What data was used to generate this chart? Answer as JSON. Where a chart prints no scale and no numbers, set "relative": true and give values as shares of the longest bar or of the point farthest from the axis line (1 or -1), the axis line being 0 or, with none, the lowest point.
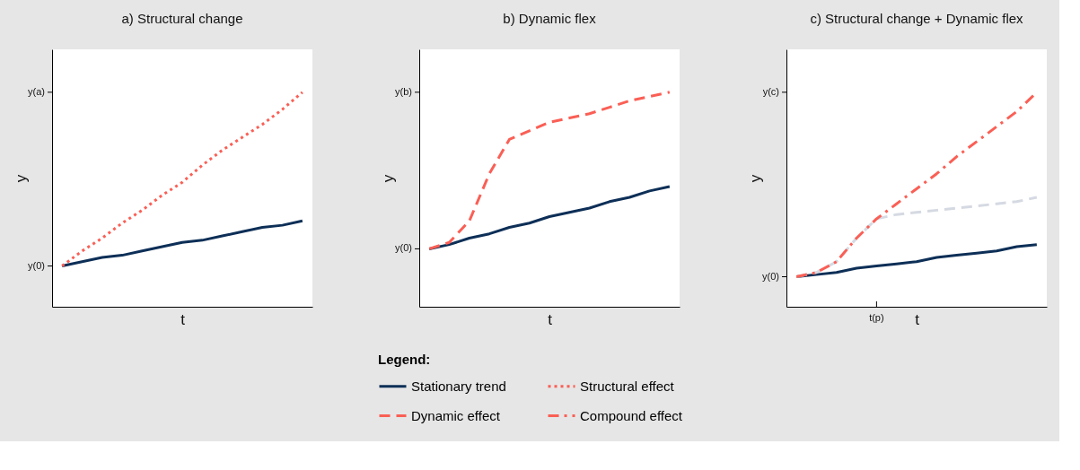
{
  "chart_data": [
    {
      "type": "line",
      "relative": true,
      "title": "a) Structural change",
      "xlabel": "t",
      "ylabel": "y",
      "categories": [
        null,
        null,
        null,
        null,
        null,
        null,
        null,
        null,
        null,
        null,
        null,
        null,
        null
      ],
      "legend": "bottom",
      "legend_title": "Legend:",
      "annotations": [
        "y(0)",
        "y(a)"
      ],
      "series": [
        {
          "name": "Stationary trend",
          "color": "#0d2f57",
          "line_style": "solid",
          "values": [
            0.19,
            0.21,
            0.23,
            0.24,
            0.26,
            0.28,
            0.3,
            0.31,
            0.33,
            0.35,
            0.37,
            0.38,
            0.4
          ]
        },
        {
          "name": "Structural effect",
          "color": "#fa5f55",
          "line_style": "dotted",
          "values": [
            0.19,
            0.26,
            0.32,
            0.39,
            0.45,
            0.52,
            0.58,
            0.66,
            0.73,
            0.79,
            0.85,
            0.92,
            1
          ]
        }
      ]
    },
    {
      "type": "line",
      "relative": true,
      "title": "b) Dynamic flex",
      "xlabel": "t",
      "ylabel": "y",
      "categories": [
        null,
        null,
        null,
        null,
        null,
        null,
        null,
        null,
        null,
        null,
        null,
        null,
        null
      ],
      "annotations": [
        "y(0)",
        "y(b)"
      ],
      "series": [
        {
          "color": "#0d2f57",
          "line_style": "solid",
          "values": [
            0.27,
            0.29,
            0.32,
            0.34,
            0.37,
            0.39,
            0.42,
            0.44,
            0.46,
            0.49,
            0.51,
            0.54,
            0.56
          ]
        },
        {
          "name": "Dynamic effect",
          "color": "#fa5f55",
          "line_style": "dashed",
          "values": [
            0.27,
            0.3,
            0.4,
            0.62,
            0.78,
            0.82,
            0.86,
            0.88,
            0.9,
            0.93,
            0.96,
            0.98,
            1
          ]
        }
      ]
    },
    {
      "type": "line",
      "relative": true,
      "title": "c) Structural change + Dynamic flex",
      "xlabel": "t",
      "ylabel": "y",
      "categories": [
        null,
        null,
        null,
        null,
        null,
        null,
        null,
        null,
        null,
        null,
        null,
        null,
        null
      ],
      "annotations": [
        "y(0)",
        "y(c)",
        "t(p)"
      ],
      "series": [
        {
          "color": "#0d2f57",
          "line_style": "solid",
          "values": [
            0.14,
            0.15,
            0.16,
            0.18,
            0.19,
            0.2,
            0.21,
            0.23,
            0.24,
            0.25,
            0.26,
            0.28,
            0.29
          ]
        },
        {
          "color": "#d5d9e2",
          "line_style": "dashed",
          "values": [
            0.14,
            0.16,
            0.21,
            0.32,
            0.41,
            0.43,
            0.44,
            0.45,
            0.46,
            0.47,
            0.48,
            0.49,
            0.51
          ]
        },
        {
          "name": "Compound effect",
          "color": "#fa5f55",
          "line_style": "dashdot",
          "values": [
            0.14,
            0.16,
            0.21,
            0.32,
            0.41,
            0.48,
            0.55,
            0.62,
            0.7,
            0.77,
            0.84,
            0.91,
            1
          ]
        }
      ]
    }
  ]
}
